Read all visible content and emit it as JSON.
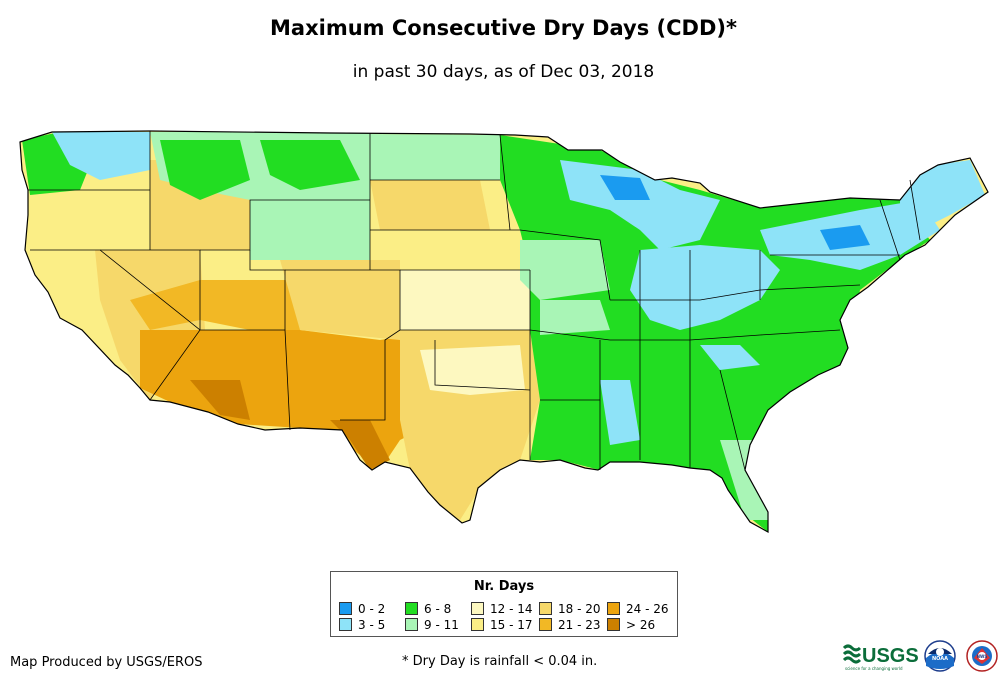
{
  "title": "Maximum Consecutive Dry Days (CDD)*",
  "subtitle": "in past 30 days, as of Dec 03, 2018",
  "legend": {
    "title": "Nr. Days",
    "items": [
      {
        "label": "0 - 2",
        "color": "#1a9bf0"
      },
      {
        "label": "3 - 5",
        "color": "#8ee3f8"
      },
      {
        "label": "6 - 8",
        "color": "#22dd22"
      },
      {
        "label": "9 - 11",
        "color": "#a9f5b6"
      },
      {
        "label": "12 - 14",
        "color": "#fdf8c0"
      },
      {
        "label": "15 - 17",
        "color": "#fbee86"
      },
      {
        "label": "18 - 20",
        "color": "#f6d86a"
      },
      {
        "label": "21 - 23",
        "color": "#f2b825"
      },
      {
        "label": "24 - 26",
        "color": "#eca40e"
      },
      {
        "label": "> 26",
        "color": "#cc8000"
      }
    ]
  },
  "credit": "Map Produced by USGS/EROS",
  "footnote": "* Dry Day is rainfall < 0.04 in.",
  "logos": {
    "usgs": "USGS",
    "usgs_tagline": "science for a changing world",
    "noaa": "NOAA",
    "nws": "NWS"
  }
}
